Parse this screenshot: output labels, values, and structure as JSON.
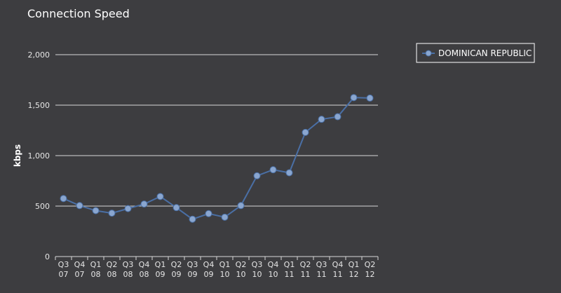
{
  "chart_data": {
    "type": "line",
    "title": "Connection Speed",
    "ylabel": "kbps",
    "xlabel": "",
    "ylim": [
      0,
      2000
    ],
    "yticks": [
      0,
      500,
      1000,
      1500,
      2000
    ],
    "ytick_labels": [
      "0",
      "500",
      "1,000",
      "1,500",
      "2,000"
    ],
    "grid": true,
    "legend_position": "top-right",
    "categories": [
      [
        "Q3",
        "07"
      ],
      [
        "Q4",
        "07"
      ],
      [
        "Q1",
        "08"
      ],
      [
        "Q2",
        "08"
      ],
      [
        "Q3",
        "08"
      ],
      [
        "Q4",
        "08"
      ],
      [
        "Q1",
        "09"
      ],
      [
        "Q2",
        "09"
      ],
      [
        "Q3",
        "09"
      ],
      [
        "Q4",
        "09"
      ],
      [
        "Q1",
        "10"
      ],
      [
        "Q2",
        "10"
      ],
      [
        "Q3",
        "10"
      ],
      [
        "Q4",
        "10"
      ],
      [
        "Q1",
        "11"
      ],
      [
        "Q2",
        "11"
      ],
      [
        "Q3",
        "11"
      ],
      [
        "Q4",
        "11"
      ],
      [
        "Q1",
        "12"
      ],
      [
        "Q2",
        "12"
      ]
    ],
    "series": [
      {
        "name": "DOMINICAN REPUBLIC",
        "color": "#4a6fa5",
        "values": [
          575,
          505,
          455,
          430,
          475,
          520,
          595,
          485,
          370,
          425,
          390,
          505,
          800,
          860,
          830,
          1230,
          1360,
          1385,
          1575,
          1570
        ]
      }
    ]
  },
  "colors": {
    "background": "#3d3d40",
    "grid": "#d8d8d8",
    "marker_fill": "#8aa6cf"
  }
}
